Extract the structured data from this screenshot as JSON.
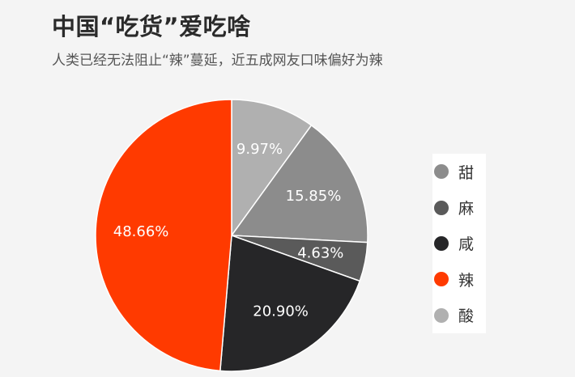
{
  "header": {
    "title": "中国“吃货”爱吃啥",
    "subtitle": "人类已经无法阻止“辣”蔓延，近五成网友口味偏好为辣"
  },
  "chart_data": {
    "type": "pie",
    "title": "中国“吃货”爱吃啥",
    "subtitle": "人类已经无法阻止“辣”蔓延，近五成网友口味偏好为辣",
    "unit": "%",
    "start": "top",
    "direction": "clockwise",
    "legend_position": "right",
    "slices": [
      {
        "name": "酸",
        "value": 9.97,
        "label": "9.97%",
        "color": "#b0b0b0"
      },
      {
        "name": "甜",
        "value": 15.85,
        "label": "15.85%",
        "color": "#8c8c8c"
      },
      {
        "name": "麻",
        "value": 4.63,
        "label": "4.63%",
        "color": "#5a5a5a"
      },
      {
        "name": "咸",
        "value": 20.9,
        "label": "20.90%",
        "color": "#262628"
      },
      {
        "name": "辣",
        "value": 48.66,
        "label": "48.66%",
        "color": "#ff3a00"
      }
    ],
    "legend": [
      {
        "name": "甜",
        "color": "#8c8c8c"
      },
      {
        "name": "麻",
        "color": "#5a5a5a"
      },
      {
        "name": "咸",
        "color": "#262628"
      },
      {
        "name": "辣",
        "color": "#ff3a00"
      },
      {
        "name": "酸",
        "color": "#b0b0b0"
      }
    ]
  }
}
